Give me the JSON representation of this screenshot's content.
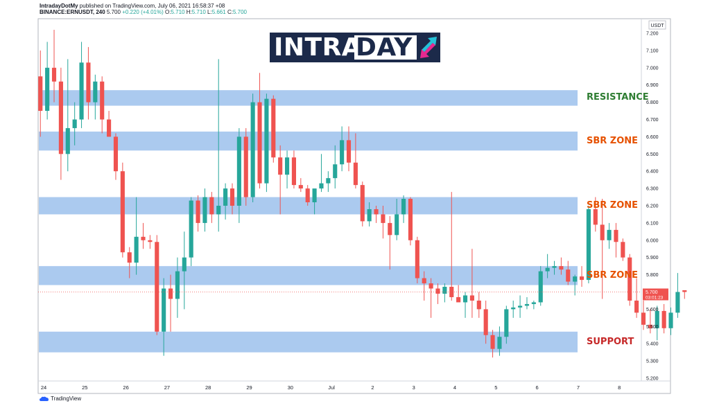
{
  "header": {
    "publisher": "IntradayDotMy",
    "published_text": "published on TradingView.com, July 06, 2021 16:58:37 +08",
    "symbol": "BINANCE:ERNUSDT, 240",
    "last": "5.700",
    "change": "+0.220 (+4.01%)",
    "o_label": "O:",
    "o": "5.710",
    "h_label": "H:",
    "h": "5.710",
    "l_label": "L:",
    "l": "5.661",
    "c_label": "C:",
    "c": "5.700"
  },
  "logo": {
    "part1": "INTRA",
    "part2": "DAY"
  },
  "branding": {
    "footer": "TradingView"
  },
  "chart_data": {
    "type": "candlestick",
    "currency": "USDT",
    "ylim": [
      5.2,
      7.25
    ],
    "y_ticks": [
      "7.200",
      "7.100",
      "7.000",
      "6.900",
      "6.800",
      "6.700",
      "6.600",
      "6.500",
      "6.400",
      "6.300",
      "6.200",
      "6.100",
      "6.000",
      "5.900",
      "5.800",
      "5.700",
      "5.600",
      "5.500",
      "5.400",
      "5.300",
      "5.200"
    ],
    "x_ticks": [
      {
        "label": "24",
        "day": 0
      },
      {
        "label": "25",
        "day": 1
      },
      {
        "label": "26",
        "day": 2
      },
      {
        "label": "27",
        "day": 3
      },
      {
        "label": "28",
        "day": 4
      },
      {
        "label": "29",
        "day": 5
      },
      {
        "label": "30",
        "day": 6
      },
      {
        "label": "Jul",
        "day": 7
      },
      {
        "label": "2",
        "day": 8
      },
      {
        "label": "3",
        "day": 9
      },
      {
        "label": "4",
        "day": 10
      },
      {
        "label": "5",
        "day": 11
      },
      {
        "label": "6",
        "day": 12
      },
      {
        "label": "7",
        "day": 13
      },
      {
        "label": "8",
        "day": 14
      }
    ],
    "x_range_days": [
      -0.1,
      14.6
    ],
    "candles_per_day": 6,
    "first_candle_day": -0.08,
    "colors": {
      "up": "#26a69a",
      "down": "#ef5350",
      "zone": "#8fb8ea",
      "resistance": "#2e7d32",
      "sbr": "#e65100",
      "support": "#c62828"
    },
    "current_price": {
      "value": 5.7,
      "label": "5.700",
      "countdown": "03:01:23"
    },
    "zones": [
      {
        "label": "RESISTANCE",
        "low": 6.78,
        "high": 6.87,
        "color": "resistance"
      },
      {
        "label": "SBR ZONE",
        "low": 6.52,
        "high": 6.63,
        "color": "sbr"
      },
      {
        "label": "SBR ZONE",
        "low": 6.15,
        "high": 6.25,
        "color": "sbr"
      },
      {
        "label": "SBR ZONE",
        "low": 5.74,
        "high": 5.85,
        "color": "sbr"
      },
      {
        "label": "SUPPORT",
        "low": 5.35,
        "high": 5.47,
        "color": "support"
      }
    ],
    "candles": [
      {
        "o": 6.95,
        "h": 7.1,
        "l": 6.6,
        "c": 6.75
      },
      {
        "o": 6.75,
        "h": 7.15,
        "l": 6.7,
        "c": 7.0
      },
      {
        "o": 7.0,
        "h": 7.22,
        "l": 6.8,
        "c": 6.92
      },
      {
        "o": 6.92,
        "h": 7.0,
        "l": 6.35,
        "c": 6.5
      },
      {
        "o": 6.5,
        "h": 7.05,
        "l": 6.4,
        "c": 6.65
      },
      {
        "o": 6.65,
        "h": 6.8,
        "l": 6.55,
        "c": 6.7
      },
      {
        "o": 6.7,
        "h": 7.15,
        "l": 6.65,
        "c": 7.03
      },
      {
        "o": 7.03,
        "h": 7.12,
        "l": 6.7,
        "c": 6.8
      },
      {
        "o": 6.8,
        "h": 6.96,
        "l": 6.7,
        "c": 6.92
      },
      {
        "o": 6.92,
        "h": 6.95,
        "l": 6.62,
        "c": 6.7
      },
      {
        "o": 6.7,
        "h": 6.75,
        "l": 6.6,
        "c": 6.6
      },
      {
        "o": 6.6,
        "h": 6.62,
        "l": 6.35,
        "c": 6.4
      },
      {
        "o": 6.4,
        "h": 6.45,
        "l": 5.9,
        "c": 5.93
      },
      {
        "o": 5.93,
        "h": 5.96,
        "l": 5.78,
        "c": 5.87
      },
      {
        "o": 5.87,
        "h": 6.25,
        "l": 5.8,
        "c": 6.02
      },
      {
        "o": 6.02,
        "h": 6.1,
        "l": 5.95,
        "c": 6.0
      },
      {
        "o": 6.0,
        "h": 6.03,
        "l": 5.95,
        "c": 5.99
      },
      {
        "o": 5.99,
        "h": 6.03,
        "l": 5.45,
        "c": 5.47
      },
      {
        "o": 5.47,
        "h": 5.78,
        "l": 5.33,
        "c": 5.72
      },
      {
        "o": 5.72,
        "h": 5.8,
        "l": 5.47,
        "c": 5.66
      },
      {
        "o": 5.66,
        "h": 5.9,
        "l": 5.55,
        "c": 5.82
      },
      {
        "o": 5.82,
        "h": 6.05,
        "l": 5.6,
        "c": 5.9
      },
      {
        "o": 5.9,
        "h": 6.25,
        "l": 5.85,
        "c": 6.23
      },
      {
        "o": 6.23,
        "h": 6.26,
        "l": 6.05,
        "c": 6.1
      },
      {
        "o": 6.1,
        "h": 6.3,
        "l": 6.05,
        "c": 6.25
      },
      {
        "o": 6.25,
        "h": 6.28,
        "l": 6.1,
        "c": 6.15
      },
      {
        "o": 6.15,
        "h": 7.05,
        "l": 6.05,
        "c": 6.2
      },
      {
        "o": 6.2,
        "h": 6.33,
        "l": 6.12,
        "c": 6.3
      },
      {
        "o": 6.3,
        "h": 6.33,
        "l": 6.15,
        "c": 6.2
      },
      {
        "o": 6.2,
        "h": 6.65,
        "l": 6.1,
        "c": 6.6
      },
      {
        "o": 6.6,
        "h": 6.65,
        "l": 6.2,
        "c": 6.25
      },
      {
        "o": 6.25,
        "h": 6.85,
        "l": 6.22,
        "c": 6.8
      },
      {
        "o": 6.8,
        "h": 6.97,
        "l": 6.3,
        "c": 6.33
      },
      {
        "o": 6.33,
        "h": 6.85,
        "l": 6.28,
        "c": 6.82
      },
      {
        "o": 6.82,
        "h": 6.84,
        "l": 6.45,
        "c": 6.48
      },
      {
        "o": 6.48,
        "h": 6.55,
        "l": 6.15,
        "c": 6.38
      },
      {
        "o": 6.38,
        "h": 6.52,
        "l": 6.3,
        "c": 6.48
      },
      {
        "o": 6.48,
        "h": 6.52,
        "l": 6.3,
        "c": 6.32
      },
      {
        "o": 6.32,
        "h": 6.36,
        "l": 6.28,
        "c": 6.3
      },
      {
        "o": 6.3,
        "h": 6.32,
        "l": 6.2,
        "c": 6.22
      },
      {
        "o": 6.22,
        "h": 6.28,
        "l": 6.15,
        "c": 6.3
      },
      {
        "o": 6.3,
        "h": 6.5,
        "l": 6.28,
        "c": 6.33
      },
      {
        "o": 6.33,
        "h": 6.4,
        "l": 6.28,
        "c": 6.36
      },
      {
        "o": 6.36,
        "h": 6.55,
        "l": 6.3,
        "c": 6.44
      },
      {
        "o": 6.44,
        "h": 6.66,
        "l": 6.4,
        "c": 6.58
      },
      {
        "o": 6.58,
        "h": 6.66,
        "l": 6.4,
        "c": 6.45
      },
      {
        "o": 6.45,
        "h": 6.62,
        "l": 6.3,
        "c": 6.32
      },
      {
        "o": 6.32,
        "h": 6.34,
        "l": 6.08,
        "c": 6.11
      },
      {
        "o": 6.11,
        "h": 6.22,
        "l": 6.08,
        "c": 6.18
      },
      {
        "o": 6.18,
        "h": 6.2,
        "l": 6.1,
        "c": 6.15
      },
      {
        "o": 6.15,
        "h": 6.2,
        "l": 6.01,
        "c": 6.1
      },
      {
        "o": 6.1,
        "h": 6.14,
        "l": 5.83,
        "c": 6.03
      },
      {
        "o": 6.03,
        "h": 6.24,
        "l": 6.0,
        "c": 6.15
      },
      {
        "o": 6.15,
        "h": 6.26,
        "l": 6.1,
        "c": 6.24
      },
      {
        "o": 6.24,
        "h": 6.25,
        "l": 5.97,
        "c": 6.0
      },
      {
        "o": 6.0,
        "h": 6.02,
        "l": 5.75,
        "c": 5.78
      },
      {
        "o": 5.78,
        "h": 5.82,
        "l": 5.65,
        "c": 5.75
      },
      {
        "o": 5.75,
        "h": 5.78,
        "l": 5.55,
        "c": 5.72
      },
      {
        "o": 5.72,
        "h": 5.75,
        "l": 5.63,
        "c": 5.69
      },
      {
        "o": 5.69,
        "h": 5.75,
        "l": 5.64,
        "c": 5.73
      },
      {
        "o": 5.73,
        "h": 6.28,
        "l": 5.65,
        "c": 5.67
      },
      {
        "o": 5.67,
        "h": 5.74,
        "l": 5.65,
        "c": 5.64
      },
      {
        "o": 5.64,
        "h": 5.7,
        "l": 5.55,
        "c": 5.68
      },
      {
        "o": 5.68,
        "h": 5.95,
        "l": 5.55,
        "c": 5.65
      },
      {
        "o": 5.65,
        "h": 5.7,
        "l": 5.55,
        "c": 5.6
      },
      {
        "o": 5.6,
        "h": 5.65,
        "l": 5.4,
        "c": 5.45
      },
      {
        "o": 5.45,
        "h": 5.48,
        "l": 5.32,
        "c": 5.37
      },
      {
        "o": 5.37,
        "h": 5.5,
        "l": 5.33,
        "c": 5.44
      },
      {
        "o": 5.44,
        "h": 5.62,
        "l": 5.4,
        "c": 5.6
      },
      {
        "o": 5.6,
        "h": 5.65,
        "l": 5.55,
        "c": 5.61
      },
      {
        "o": 5.61,
        "h": 5.68,
        "l": 5.55,
        "c": 5.62
      },
      {
        "o": 5.62,
        "h": 5.67,
        "l": 5.6,
        "c": 5.63
      },
      {
        "o": 5.63,
        "h": 5.65,
        "l": 5.6,
        "c": 5.64
      },
      {
        "o": 5.64,
        "h": 5.85,
        "l": 5.62,
        "c": 5.82
      },
      {
        "o": 5.82,
        "h": 5.92,
        "l": 5.78,
        "c": 5.84
      },
      {
        "o": 5.84,
        "h": 5.88,
        "l": 5.8,
        "c": 5.85
      },
      {
        "o": 5.85,
        "h": 5.9,
        "l": 5.8,
        "c": 5.83
      },
      {
        "o": 5.83,
        "h": 5.88,
        "l": 5.74,
        "c": 5.76
      },
      {
        "o": 5.76,
        "h": 5.8,
        "l": 5.68,
        "c": 5.79
      },
      {
        "o": 5.79,
        "h": 5.85,
        "l": 5.73,
        "c": 5.77
      },
      {
        "o": 5.77,
        "h": 6.2,
        "l": 5.75,
        "c": 6.18
      },
      {
        "o": 6.18,
        "h": 6.25,
        "l": 6.05,
        "c": 6.09
      },
      {
        "o": 6.09,
        "h": 6.24,
        "l": 5.66,
        "c": 6.0
      },
      {
        "o": 6.0,
        "h": 6.1,
        "l": 5.95,
        "c": 6.06
      },
      {
        "o": 6.06,
        "h": 6.1,
        "l": 5.9,
        "c": 5.99
      },
      {
        "o": 5.99,
        "h": 6.01,
        "l": 5.88,
        "c": 5.9
      },
      {
        "o": 5.9,
        "h": 5.92,
        "l": 5.62,
        "c": 5.65
      },
      {
        "o": 5.65,
        "h": 5.78,
        "l": 5.55,
        "c": 5.58
      },
      {
        "o": 5.58,
        "h": 5.65,
        "l": 5.48,
        "c": 5.51
      },
      {
        "o": 5.51,
        "h": 5.6,
        "l": 5.46,
        "c": 5.49
      },
      {
        "o": 5.49,
        "h": 5.62,
        "l": 5.42,
        "c": 5.59
      },
      {
        "o": 5.59,
        "h": 5.63,
        "l": 5.46,
        "c": 5.49
      },
      {
        "o": 5.49,
        "h": 5.61,
        "l": 5.45,
        "c": 5.58
      },
      {
        "o": 5.58,
        "h": 5.81,
        "l": 5.55,
        "c": 5.7
      },
      {
        "o": 5.71,
        "h": 5.71,
        "l": 5.66,
        "c": 5.7
      }
    ]
  }
}
